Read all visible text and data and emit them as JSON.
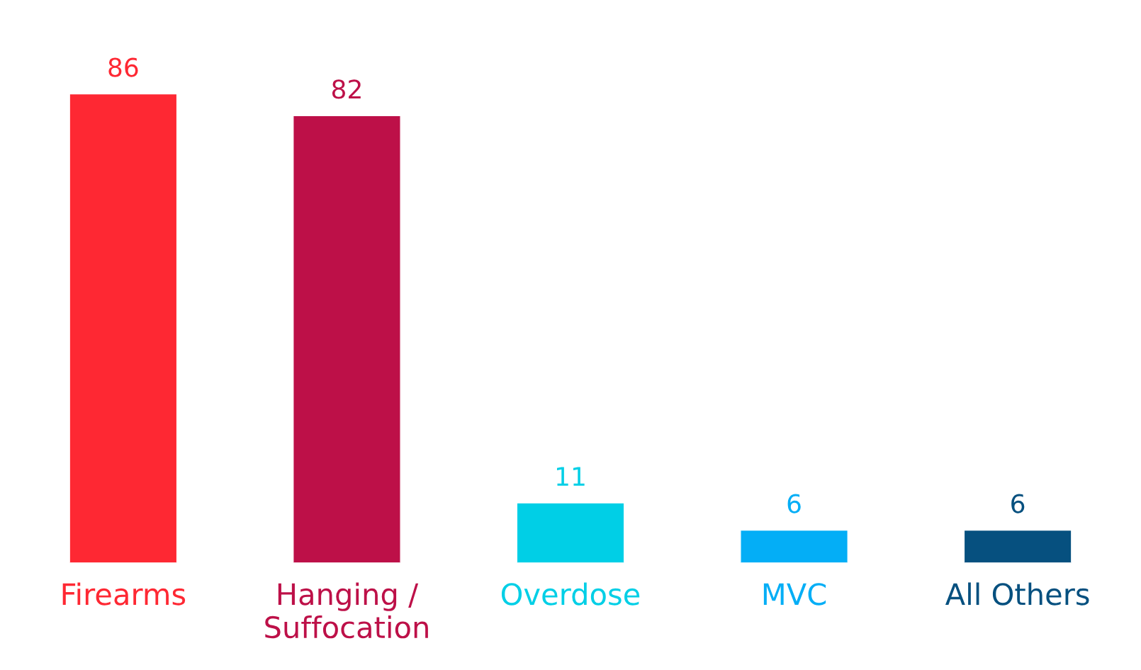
{
  "chart_data": {
    "type": "bar",
    "categories": [
      "Firearms",
      "Hanging /\nSuffocation",
      "Overdose",
      "MVC",
      "All Others"
    ],
    "values": [
      86,
      82,
      11,
      6,
      6
    ],
    "colors": [
      "#fe2833",
      "#bd1048",
      "#00cfe6",
      "#04aef6",
      "#06507f"
    ],
    "data_labels": true,
    "grid": false,
    "legend": false
  }
}
